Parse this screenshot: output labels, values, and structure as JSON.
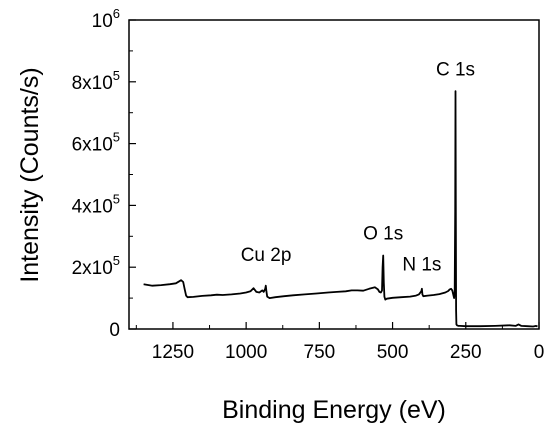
{
  "chart_data": {
    "type": "line",
    "title": "",
    "xlabel": "Binding Energy (eV)",
    "ylabel": "Intensity (Counts/s)",
    "x_reversed": true,
    "xlim": [
      1400,
      0
    ],
    "ylim": [
      0,
      1000000
    ],
    "grid": false,
    "x_ticks": [
      {
        "value": 1250,
        "label": "1250"
      },
      {
        "value": 1000,
        "label": "1000"
      },
      {
        "value": 750,
        "label": "750"
      },
      {
        "value": 500,
        "label": "500"
      },
      {
        "value": 250,
        "label": "250"
      },
      {
        "value": 0,
        "label": "0"
      }
    ],
    "y_ticks": [
      {
        "value": 0,
        "label": "0",
        "exp": ""
      },
      {
        "value": 200000,
        "label": "2x10",
        "exp": "5"
      },
      {
        "value": 400000,
        "label": "4x10",
        "exp": "5"
      },
      {
        "value": 600000,
        "label": "6x10",
        "exp": "5"
      },
      {
        "value": 800000,
        "label": "8x10",
        "exp": "5"
      },
      {
        "value": 1000000,
        "label": "10",
        "exp": "6"
      }
    ],
    "annotations": [
      {
        "text": "C 1s",
        "x": 285,
        "y": 820000
      },
      {
        "text": "O 1s",
        "x": 532,
        "y": 290000
      },
      {
        "text": "N 1s",
        "x": 400,
        "y": 190000
      },
      {
        "text": "Cu 2p",
        "x": 932,
        "y": 220000
      }
    ],
    "series": [
      {
        "color": "#000000",
        "x": [
          1350,
          1320,
          1290,
          1260,
          1240,
          1222,
          1215,
          1210,
          1205,
          1200,
          1180,
          1150,
          1120,
          1100,
          1080,
          1050,
          1020,
          1000,
          985,
          975,
          965,
          955,
          945,
          940,
          935,
          933,
          931,
          928,
          920,
          900,
          870,
          840,
          800,
          760,
          720,
          690,
          660,
          640,
          620,
          600,
          580,
          560,
          550,
          545,
          540,
          536,
          534,
          532,
          530,
          528,
          525,
          520,
          500,
          470,
          440,
          420,
          410,
          402,
          400,
          398,
          395,
          380,
          360,
          340,
          320,
          310,
          305,
          300,
          296,
          292,
          290,
          288,
          286,
          285,
          284,
          283,
          282,
          280,
          275,
          270,
          250,
          200,
          150,
          100,
          80,
          70,
          60,
          40,
          20,
          10,
          5
        ],
        "y": [
          145000,
          140000,
          142000,
          145000,
          148000,
          158000,
          152000,
          130000,
          108000,
          103000,
          104000,
          107000,
          109000,
          111000,
          110000,
          112000,
          115000,
          118000,
          122000,
          132000,
          120000,
          118000,
          125000,
          120000,
          130000,
          140000,
          122000,
          105000,
          100000,
          103000,
          106000,
          109000,
          112000,
          115000,
          118000,
          120000,
          122000,
          125000,
          125000,
          124000,
          130000,
          135000,
          128000,
          120000,
          118000,
          125000,
          200000,
          238000,
          150000,
          105000,
          95000,
          98000,
          101000,
          103000,
          105000,
          108000,
          112000,
          122000,
          130000,
          112000,
          106000,
          108000,
          110000,
          113000,
          118000,
          123000,
          128000,
          130000,
          125000,
          108000,
          100000,
          120000,
          380000,
          770000,
          400000,
          60000,
          15000,
          12000,
          10000,
          10000,
          9000,
          9000,
          10000,
          12000,
          10000,
          15000,
          10000,
          9000,
          8000,
          10000,
          8000
        ]
      }
    ]
  }
}
